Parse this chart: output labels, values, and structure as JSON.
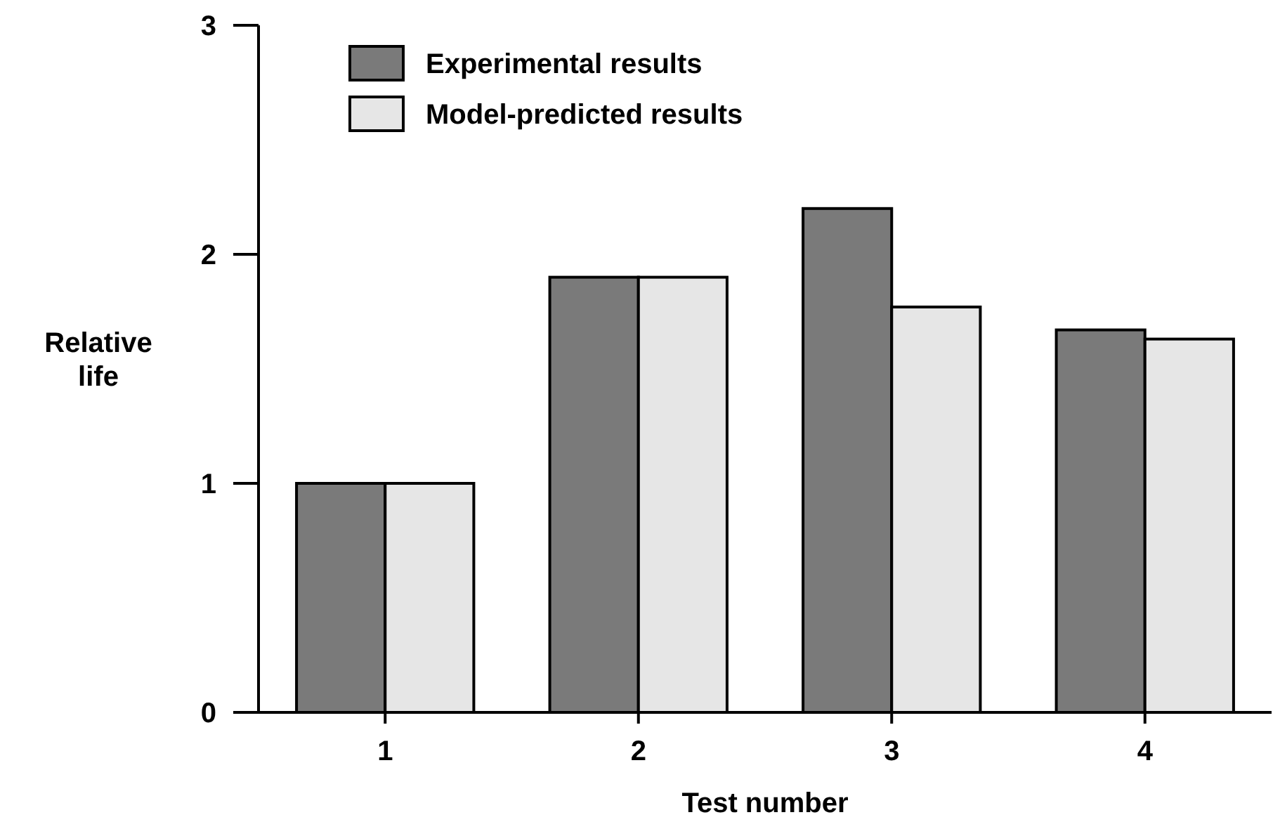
{
  "chart_data": {
    "type": "bar",
    "xlabel": "Test number",
    "ylabel": "Relative life",
    "categories": [
      "1",
      "2",
      "3",
      "4"
    ],
    "series": [
      {
        "name": "Experimental results",
        "color": "#7a7a7a",
        "values": [
          1.0,
          1.9,
          2.2,
          1.67
        ]
      },
      {
        "name": "Model-predicted results",
        "color": "#e6e6e6",
        "values": [
          1.0,
          1.9,
          1.77,
          1.63
        ]
      }
    ],
    "ylim": [
      0,
      3
    ],
    "yticks": [
      0,
      1,
      2,
      3
    ],
    "grid": false,
    "legend": "top left"
  }
}
